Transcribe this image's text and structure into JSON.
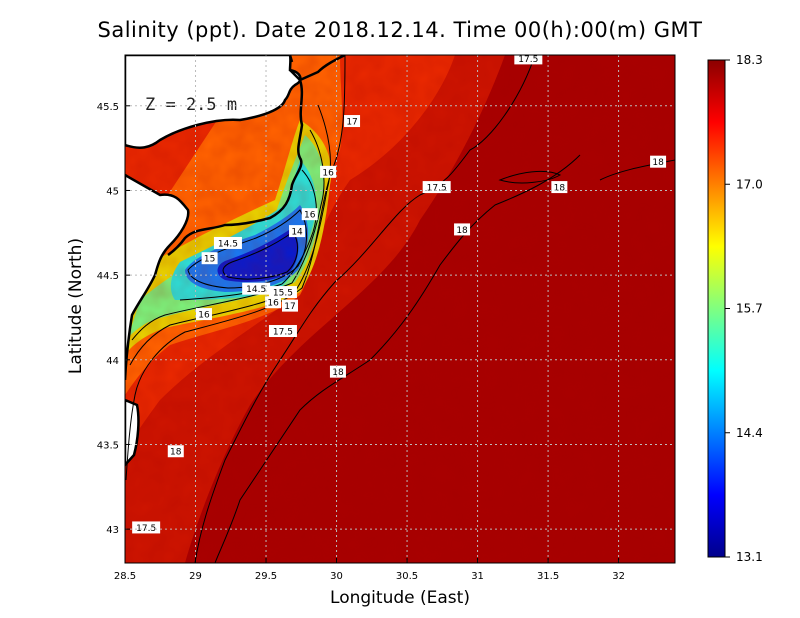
{
  "chart_data": {
    "type": "heatmap",
    "title": "Salinity (ppt). Date 2018.12.14. Time 00(h):00(m) GMT",
    "xlabel": "Longitude (East)",
    "ylabel": "Latitude (North)",
    "xlim": [
      28.5,
      32.4
    ],
    "ylim": [
      42.8,
      45.8
    ],
    "xticks": [
      "28.5",
      "29",
      "29.5",
      "30",
      "30.5",
      "31",
      "31.5",
      "32"
    ],
    "yticks": [
      "43",
      "43.5",
      "44",
      "44.5",
      "45",
      "45.5"
    ],
    "grid": true,
    "annotation": "Z = 2.5 m",
    "colorbar": {
      "range": [
        13.1,
        18.3
      ],
      "ticks": [
        "13.1",
        "14.4",
        "15.7",
        "17.0",
        "18.3"
      ],
      "colors": [
        "#00008b",
        "#0000ff",
        "#0080ff",
        "#00ffff",
        "#80ff80",
        "#ffff00",
        "#ff8000",
        "#ff0000",
        "#8b0000"
      ]
    },
    "contour_labels": [
      {
        "text": "17.5",
        "lon": 31.36,
        "lat": 45.78
      },
      {
        "text": "17",
        "lon": 30.11,
        "lat": 45.41
      },
      {
        "text": "18",
        "lon": 32.28,
        "lat": 45.17
      },
      {
        "text": "16",
        "lon": 29.94,
        "lat": 45.11
      },
      {
        "text": "17.5",
        "lon": 30.71,
        "lat": 45.02
      },
      {
        "text": "18",
        "lon": 31.58,
        "lat": 45.02
      },
      {
        "text": "16",
        "lon": 29.81,
        "lat": 44.86
      },
      {
        "text": "14",
        "lon": 29.72,
        "lat": 44.76
      },
      {
        "text": "18",
        "lon": 30.89,
        "lat": 44.77
      },
      {
        "text": "14.5",
        "lon": 29.23,
        "lat": 44.69
      },
      {
        "text": "15",
        "lon": 29.1,
        "lat": 44.6
      },
      {
        "text": "14.5",
        "lon": 29.43,
        "lat": 44.42
      },
      {
        "text": "15.5",
        "lon": 29.62,
        "lat": 44.4
      },
      {
        "text": "16",
        "lon": 29.55,
        "lat": 44.34
      },
      {
        "text": "17",
        "lon": 29.67,
        "lat": 44.32
      },
      {
        "text": "16",
        "lon": 29.06,
        "lat": 44.27
      },
      {
        "text": "17.5",
        "lon": 29.62,
        "lat": 44.17
      },
      {
        "text": "18",
        "lon": 30.01,
        "lat": 43.93
      },
      {
        "text": "18",
        "lon": 28.86,
        "lat": 43.46
      },
      {
        "text": "17.5",
        "lon": 28.65,
        "lat": 43.01
      }
    ]
  }
}
